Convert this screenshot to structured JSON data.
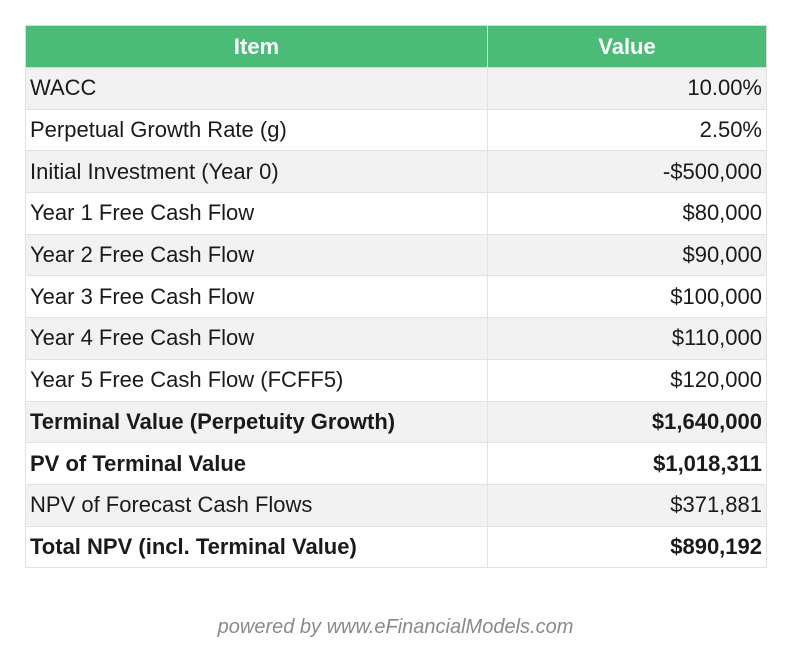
{
  "table": {
    "headers": {
      "item": "Item",
      "value": "Value"
    },
    "rows": [
      {
        "item": "WACC",
        "value": "10.00%",
        "bold": false
      },
      {
        "item": "Perpetual Growth Rate (g)",
        "value": "2.50%",
        "bold": false
      },
      {
        "item": "Initial Investment (Year 0)",
        "value": "-$500,000",
        "bold": false
      },
      {
        "item": "Year 1 Free Cash Flow",
        "value": "$80,000",
        "bold": false
      },
      {
        "item": "Year 2 Free Cash Flow",
        "value": "$90,000",
        "bold": false
      },
      {
        "item": "Year 3 Free Cash Flow",
        "value": "$100,000",
        "bold": false
      },
      {
        "item": "Year 4 Free Cash Flow",
        "value": "$110,000",
        "bold": false
      },
      {
        "item": "Year 5 Free Cash Flow (FCFF5)",
        "value": "$120,000",
        "bold": false
      },
      {
        "item": "Terminal Value (Perpetuity Growth)",
        "value": "$1,640,000",
        "bold": true
      },
      {
        "item": "PV of Terminal Value",
        "value": "$1,018,311",
        "bold": true
      },
      {
        "item": "NPV of Forecast Cash Flows",
        "value": "$371,881",
        "bold": false
      },
      {
        "item": "Total NPV (incl. Terminal Value)",
        "value": "$890,192",
        "bold": true
      }
    ]
  },
  "footer": {
    "text": "powered by  www.eFinancialModels.com"
  },
  "colors": {
    "header_bg": "#4cbb78",
    "header_text": "#ffffff",
    "row_shade": "#f2f2f2"
  }
}
